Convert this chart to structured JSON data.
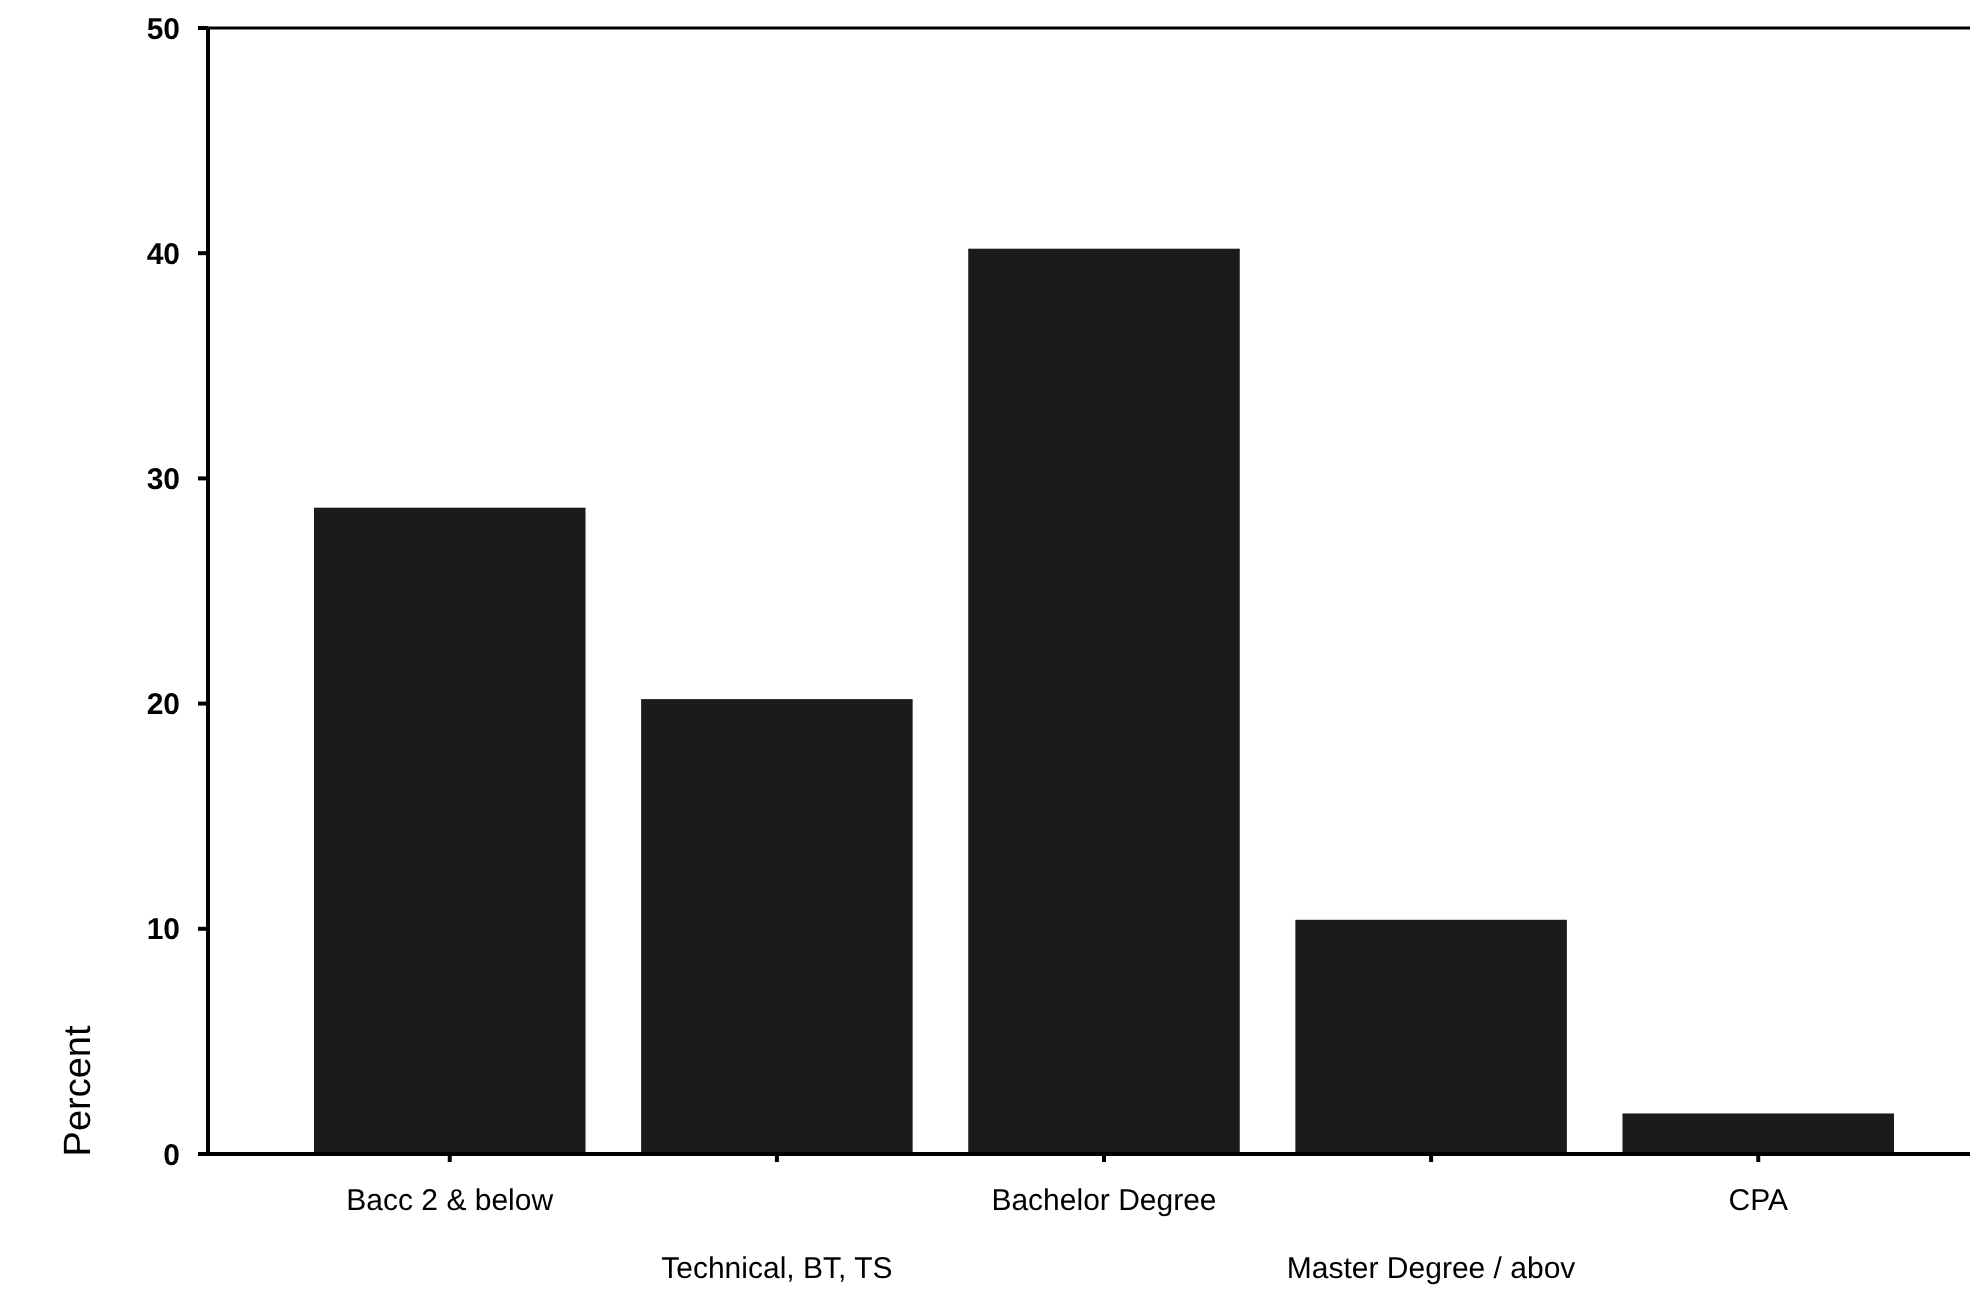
{
  "chart_data": {
    "type": "bar",
    "ylabel": "Percent",
    "categories": [
      "Bacc 2 & below",
      "Technical, BT, TS",
      "Bachelor Degree",
      "Master Degree / abov",
      "CPA"
    ],
    "values": [
      28.7,
      20.2,
      40.2,
      10.4,
      1.8
    ],
    "color": "#1c1a1b",
    "ylim": [
      0,
      50
    ],
    "yticks": [
      0,
      10,
      20,
      30,
      40,
      50
    ],
    "grid": false
  }
}
